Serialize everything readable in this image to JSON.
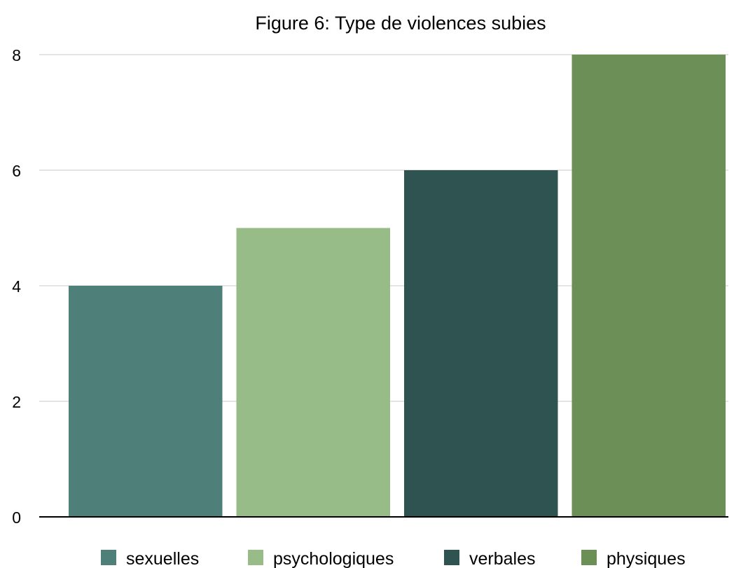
{
  "chart_data": {
    "type": "bar",
    "title": "Figure 6: Type de violences subies",
    "categories": [
      "sexuelles",
      "psychologiques",
      "verbales",
      "physiques"
    ],
    "values": [
      4,
      5,
      6,
      8
    ],
    "colors": [
      "#4e7f78",
      "#98bc88",
      "#2f5350",
      "#6b8f56"
    ],
    "xlabel": "",
    "ylabel": "",
    "ylim": [
      0,
      8
    ],
    "yticks": [
      0,
      2,
      4,
      6,
      8
    ],
    "grid": true,
    "legend": "bottom"
  }
}
